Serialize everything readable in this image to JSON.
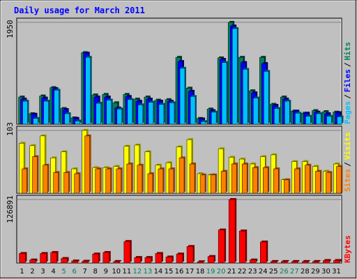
{
  "title": "Daily usage for March 2011",
  "colors": {
    "background": "#C0C0C0",
    "title": "#0000FF",
    "hits": "#00805C",
    "files": "#0000FF",
    "pages": "#00C0FF",
    "visits": "#FFFF00",
    "sites": "#FF8000",
    "kbytes": "#FF0000",
    "weekend_day": "#00805C",
    "weekday": "#000000"
  },
  "chart_data": [
    {
      "type": "bar",
      "panel": "hits-files-pages",
      "y_max_label": "1950",
      "ylim": [
        0,
        1950
      ],
      "categories": [
        "1",
        "2",
        "3",
        "4",
        "5",
        "6",
        "7",
        "8",
        "9",
        "10",
        "11",
        "12",
        "13",
        "14",
        "15",
        "16",
        "17",
        "18",
        "19",
        "20",
        "21",
        "22",
        "23",
        "24",
        "25",
        "26",
        "27",
        "28",
        "29",
        "30",
        "31"
      ],
      "legend": {
        "hits": "Hits",
        "files": "Files",
        "pages": "Pages",
        "sep": "/"
      },
      "series": [
        {
          "name": "Hits",
          "values": [
            520,
            200,
            540,
            700,
            300,
            120,
            1370,
            560,
            570,
            410,
            570,
            480,
            520,
            460,
            470,
            1280,
            690,
            110,
            290,
            1270,
            1950,
            1280,
            640,
            1280,
            380,
            520,
            250,
            210,
            260,
            240,
            230
          ]
        },
        {
          "name": "Files",
          "values": [
            480,
            190,
            500,
            680,
            280,
            110,
            1360,
            520,
            520,
            310,
            530,
            440,
            480,
            440,
            440,
            1200,
            630,
            100,
            260,
            1240,
            1880,
            1180,
            600,
            1160,
            360,
            480,
            250,
            210,
            230,
            200,
            220
          ]
        },
        {
          "name": "Pages",
          "values": [
            440,
            110,
            440,
            650,
            200,
            60,
            1280,
            400,
            460,
            290,
            470,
            370,
            420,
            380,
            410,
            1070,
            530,
            50,
            230,
            1180,
            1830,
            1050,
            500,
            1010,
            300,
            440,
            210,
            150,
            200,
            150,
            140
          ]
        }
      ]
    },
    {
      "type": "bar",
      "panel": "visits-sites",
      "y_max_label": "103",
      "ylim": [
        0,
        103
      ],
      "categories": [
        "1",
        "2",
        "3",
        "4",
        "5",
        "6",
        "7",
        "8",
        "9",
        "10",
        "11",
        "12",
        "13",
        "14",
        "15",
        "16",
        "17",
        "18",
        "19",
        "20",
        "21",
        "22",
        "23",
        "24",
        "25",
        "26",
        "27",
        "28",
        "29",
        "30",
        "31"
      ],
      "legend": {
        "visits": "Visits",
        "sites": "Sites",
        "sep": "/"
      },
      "series": [
        {
          "name": "Visits",
          "values": [
            82,
            78,
            94,
            58,
            68,
            40,
            103,
            42,
            42,
            44,
            77,
            79,
            68,
            46,
            50,
            76,
            88,
            32,
            30,
            73,
            59,
            56,
            48,
            60,
            63,
            22,
            52,
            52,
            44,
            36,
            48
          ]
        },
        {
          "name": "Sites",
          "values": [
            40,
            60,
            46,
            34,
            34,
            32,
            94,
            40,
            40,
            40,
            48,
            46,
            32,
            40,
            40,
            58,
            48,
            30,
            30,
            36,
            48,
            48,
            42,
            42,
            40,
            22,
            40,
            46,
            36,
            34,
            44
          ]
        }
      ]
    },
    {
      "type": "bar",
      "panel": "kbytes",
      "y_max_label": "126891",
      "ylim": [
        0,
        126891
      ],
      "categories": [
        "1",
        "2",
        "3",
        "4",
        "5",
        "6",
        "7",
        "8",
        "9",
        "10",
        "11",
        "12",
        "13",
        "14",
        "15",
        "16",
        "17",
        "18",
        "19",
        "20",
        "21",
        "22",
        "23",
        "24",
        "25",
        "26",
        "27",
        "28",
        "29",
        "30",
        "31"
      ],
      "legend": {
        "kbytes": "KBytes"
      },
      "series": [
        {
          "name": "KBytes",
          "values": [
            19000,
            6000,
            19000,
            21000,
            9000,
            4000,
            3500,
            18000,
            21000,
            3000,
            43000,
            11000,
            11000,
            19000,
            12000,
            18000,
            33000,
            2500,
            13000,
            66000,
            126891,
            64000,
            6000,
            42000,
            3000,
            3000,
            3000,
            3000,
            3000,
            5000,
            5000
          ]
        }
      ]
    }
  ]
}
